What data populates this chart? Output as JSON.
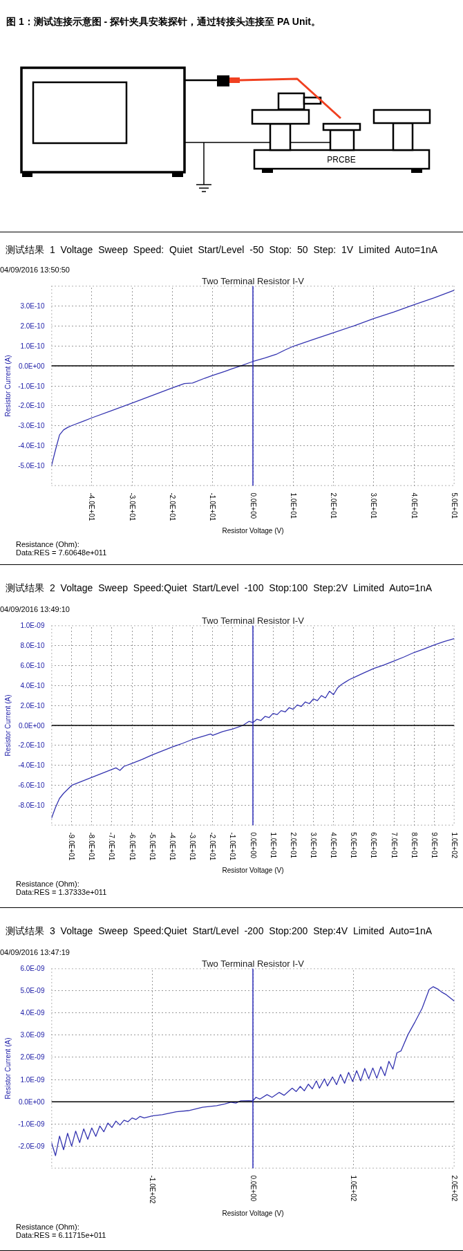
{
  "chart_data": [
    {
      "type": "other",
      "title": "图 1：测试连接示意图 - 探针夹具安装探针，通过转接头连接至 PA Unit。",
      "annotations": [
        "PRCBE"
      ]
    },
    {
      "type": "line",
      "title": "测试结果 1 Voltage Sweep Speed: Quiet Start/Level -50 Stop: 50 Step: 1V Limited Auto=1nA",
      "subtitle": "Two Terminal Resistor I-V",
      "xlabel": "Resistor Voltage (V)",
      "ylabel": "Resistor Current (A)",
      "x": [
        -50,
        -49,
        -48,
        -47,
        -46,
        -45,
        -42,
        -40,
        -35,
        -30,
        -25,
        -20,
        -17,
        -15,
        -12,
        -10,
        -7,
        -5,
        -3,
        -1,
        0,
        3,
        6,
        8,
        10,
        15,
        20,
        25,
        30,
        35,
        40,
        45,
        50
      ],
      "series": [
        {
          "color": "#3434b0",
          "values": [
            -5e-10,
            -4.2e-10,
            -3.45e-10,
            -3.2e-10,
            -3.08e-10,
            -2.99e-10,
            -2.76e-10,
            -2.6e-10,
            -2.23e-10,
            -1.86e-10,
            -1.48e-10,
            -1.1e-10,
            -8.8e-11,
            -8.6e-11,
            -6.2e-11,
            -4.8e-11,
            -2.8e-11,
            -1.3e-11,
            0,
            1.5e-11,
            2.2e-11,
            4e-11,
            6e-11,
            8e-11,
            9.8e-11,
            1.32e-10,
            1.66e-10,
            2e-10,
            2.37e-10,
            2.7e-10,
            3.06e-10,
            3.41e-10,
            3.79e-10
          ]
        }
      ],
      "xlim": [
        -50,
        50
      ],
      "ylim": [
        -6e-10,
        4e-10
      ],
      "xticks": [
        {
          "value": -50,
          "label": null
        },
        {
          "value": -40,
          "label": "-4.0E+01"
        },
        {
          "value": -30,
          "label": "-3.0E+01"
        },
        {
          "value": -20,
          "label": "-2.0E+01"
        },
        {
          "value": -10,
          "label": "-1.0E+01"
        },
        {
          "value": 0,
          "label": "0.0E+00"
        },
        {
          "value": 10,
          "label": "1.0E+01"
        },
        {
          "value": 20,
          "label": "2.0E+01"
        },
        {
          "value": 30,
          "label": "3.0E+01"
        },
        {
          "value": 40,
          "label": "4.0E+01"
        },
        {
          "value": 50,
          "label": "5.0E+01"
        }
      ],
      "yticks": [
        {
          "value": -6e-10,
          "label": null
        },
        {
          "value": -5e-10,
          "label": "-5.0E-10"
        },
        {
          "value": -4e-10,
          "label": "-4.0E-10"
        },
        {
          "value": -3e-10,
          "label": "-3.0E-10"
        },
        {
          "value": -2e-10,
          "label": "-2.0E-10"
        },
        {
          "value": -1e-10,
          "label": "-1.0E-10"
        },
        {
          "value": 0,
          "label": "0.0E+00"
        },
        {
          "value": 1e-10,
          "label": "1.0E-10"
        },
        {
          "value": 2e-10,
          "label": "2.0E-10"
        },
        {
          "value": 3e-10,
          "label": "3.0E-10"
        },
        {
          "value": 4e-10,
          "label": null
        }
      ],
      "grid": true,
      "ref_lines": [
        {
          "axis": "y",
          "value": 0,
          "color": "#000000"
        },
        {
          "axis": "x",
          "value": 0,
          "color": "#2a2ab8"
        }
      ],
      "annotations": [
        "04/09/2016 13:50:50",
        "Resistance (Ohm):",
        "Data:RES = 7.60648e+011"
      ]
    },
    {
      "type": "line",
      "title": "测试结果 2 Voltage Sweep Speed:Quiet Start/Level -100 Stop:100 Step:2V Limited Auto=1nA",
      "subtitle": "Two Terminal Resistor I-V",
      "xlabel": "Resistor Voltage (V)",
      "ylabel": "Resistor Current (A)",
      "x": [
        -100,
        -98,
        -96,
        -94,
        -92,
        -90,
        -85,
        -80,
        -75,
        -70,
        -68,
        -66,
        -64,
        -60,
        -55,
        -50,
        -45,
        -40,
        -35,
        -30,
        -25,
        -21,
        -20,
        -15,
        -10,
        -5,
        -2,
        0,
        2,
        4,
        6,
        8,
        10,
        12,
        14,
        16,
        18,
        20,
        22,
        24,
        26,
        28,
        30,
        32,
        34,
        36,
        38,
        40,
        42,
        44,
        46,
        48,
        50,
        55,
        60,
        65,
        70,
        75,
        80,
        85,
        90,
        95,
        100
      ],
      "series": [
        {
          "color": "#3434b0",
          "values": [
            -9.3e-10,
            -8.2e-10,
            -7.3e-10,
            -6.8e-10,
            -6.4e-10,
            -6e-10,
            -5.6e-10,
            -5.2e-10,
            -4.8e-10,
            -4.4e-10,
            -4.25e-10,
            -4.5e-10,
            -4.1e-10,
            -3.8e-10,
            -3.4e-10,
            -2.95e-10,
            -2.55e-10,
            -2.15e-10,
            -1.8e-10,
            -1.4e-10,
            -1.1e-10,
            -8.5e-11,
            -1e-10,
            -6.2e-11,
            -3.5e-11,
            0,
            4e-11,
            2.8e-11,
            6.2e-11,
            5e-11,
            9e-11,
            7.8e-11,
            1.2e-10,
            1.08e-10,
            1.48e-10,
            1.35e-10,
            1.78e-10,
            1.62e-10,
            2.05e-10,
            1.9e-10,
            2.35e-10,
            2.18e-10,
            2.65e-10,
            2.48e-10,
            2.98e-10,
            2.75e-10,
            3.42e-10,
            3.08e-10,
            3.75e-10,
            4.1e-10,
            4.35e-10,
            4.6e-10,
            4.78e-10,
            5.25e-10,
            5.7e-10,
            6.05e-10,
            6.45e-10,
            6.85e-10,
            7.3e-10,
            7.65e-10,
            8.05e-10,
            8.4e-10,
            8.7e-10
          ]
        }
      ],
      "xlim": [
        -100,
        100
      ],
      "ylim": [
        -1e-09,
        1e-09
      ],
      "xticks": [
        {
          "value": -100,
          "label": null
        },
        {
          "value": -90,
          "label": "-9.0E+01"
        },
        {
          "value": -80,
          "label": "-8.0E+01"
        },
        {
          "value": -70,
          "label": "-7.0E+01"
        },
        {
          "value": -60,
          "label": "-6.0E+01"
        },
        {
          "value": -50,
          "label": "-5.0E+01"
        },
        {
          "value": -40,
          "label": "-4.0E+01"
        },
        {
          "value": -30,
          "label": "-3.0E+01"
        },
        {
          "value": -20,
          "label": "-2.0E+01"
        },
        {
          "value": -10,
          "label": "-1.0E+01"
        },
        {
          "value": 0,
          "label": "0.0E+00"
        },
        {
          "value": 10,
          "label": "1.0E+01"
        },
        {
          "value": 20,
          "label": "2.0E+01"
        },
        {
          "value": 30,
          "label": "3.0E+01"
        },
        {
          "value": 40,
          "label": "4.0E+01"
        },
        {
          "value": 50,
          "label": "5.0E+01"
        },
        {
          "value": 60,
          "label": "6.0E+01"
        },
        {
          "value": 70,
          "label": "7.0E+01"
        },
        {
          "value": 80,
          "label": "8.0E+01"
        },
        {
          "value": 90,
          "label": "9.0E+01"
        },
        {
          "value": 100,
          "label": "1.0E+02"
        }
      ],
      "yticks": [
        {
          "value": -1e-09,
          "label": null
        },
        {
          "value": -8e-10,
          "label": "-8.0E-10"
        },
        {
          "value": -6e-10,
          "label": "-6.0E-10"
        },
        {
          "value": -4e-10,
          "label": "-4.0E-10"
        },
        {
          "value": -2e-10,
          "label": "-2.0E-10"
        },
        {
          "value": 0,
          "label": "0.0E+00"
        },
        {
          "value": 2e-10,
          "label": "2.0E-10"
        },
        {
          "value": 4e-10,
          "label": "4.0E-10"
        },
        {
          "value": 6e-10,
          "label": "6.0E-10"
        },
        {
          "value": 8e-10,
          "label": "8.0E-10"
        },
        {
          "value": 1e-09,
          "label": "1.0E-09"
        }
      ],
      "grid": true,
      "ref_lines": [
        {
          "axis": "y",
          "value": 0,
          "color": "#000000"
        },
        {
          "axis": "x",
          "value": 0,
          "color": "#2a2ab8"
        }
      ],
      "annotations": [
        "04/09/2016 13:49:10",
        "Resistance (Ohm):",
        "Data:RES = 1.37333e+011"
      ]
    },
    {
      "type": "line",
      "title": "测试结果 3 Voltage Sweep Speed:Quiet Start/Level -200 Stop:200 Step:4V Limited Auto=1nA",
      "subtitle": "Two Terminal Resistor I-V",
      "xlabel": "Resistor Voltage (V)",
      "ylabel": "Resistor Current (A)",
      "x": [
        -200,
        -196,
        -192,
        -188,
        -184,
        -180,
        -176,
        -172,
        -168,
        -164,
        -160,
        -156,
        -152,
        -148,
        -144,
        -140,
        -136,
        -132,
        -128,
        -124,
        -120,
        -116,
        -112,
        -108,
        -100,
        -90,
        -76,
        -64,
        -50,
        -36,
        -28,
        -22,
        -17,
        -12,
        -4,
        0,
        3,
        7,
        14,
        19,
        26,
        31,
        39,
        43,
        47,
        51,
        55,
        59,
        63,
        66,
        71,
        74,
        79,
        83,
        87,
        91,
        95,
        99,
        103,
        107,
        111,
        115,
        119,
        123,
        127,
        131,
        135,
        139,
        143,
        147,
        154,
        161,
        168,
        175,
        179,
        184,
        188,
        192,
        200
      ],
      "series": [
        {
          "color": "#3434b0",
          "values": [
            -1.84e-09,
            -2.43e-09,
            -1.55e-09,
            -2.16e-09,
            -1.42e-09,
            -2e-09,
            -1.32e-09,
            -1.84e-09,
            -1.22e-09,
            -1.69e-09,
            -1.18e-09,
            -1.56e-09,
            -1.09e-09,
            -1.35e-09,
            -9.6e-10,
            -1.16e-09,
            -8.7e-10,
            -1.05e-09,
            -8.3e-10,
            -9e-10,
            -7.3e-10,
            -8e-10,
            -6.6e-10,
            -7.3e-10,
            -6.4e-10,
            -5.8e-10,
            -4.5e-10,
            -4e-10,
            -2.5e-10,
            -1.8e-10,
            -1e-10,
            -2e-11,
            -6e-11,
            4e-11,
            5e-11,
            4e-11,
            2e-10,
            1.2e-10,
            3.2e-10,
            2e-10,
            4.2e-10,
            2.9e-10,
            6.1e-10,
            4.6e-10,
            6.9e-10,
            4.9e-10,
            7.9e-10,
            5.8e-10,
            9.4e-10,
            6.1e-10,
            1.03e-09,
            7.1e-10,
            1.12e-09,
            7.7e-10,
            1.23e-09,
            8.3e-10,
            1.32e-09,
            9.1e-10,
            1.4e-09,
            9.4e-10,
            1.5e-09,
            1.03e-09,
            1.52e-09,
            1.06e-09,
            1.58e-09,
            1.17e-09,
            1.82e-09,
            1.47e-09,
            2.2e-09,
            2.29e-09,
            3.03e-09,
            3.6e-09,
            4.21e-09,
            5.06e-09,
            5.18e-09,
            5.06e-09,
            4.92e-09,
            4.82e-09,
            4.53e-09
          ]
        }
      ],
      "xlim": [
        -200,
        200
      ],
      "ylim": [
        -3e-09,
        6e-09
      ],
      "xticks": [
        {
          "value": -200,
          "label": null
        },
        {
          "value": -100,
          "label": "-1.0E+02"
        },
        {
          "value": 0,
          "label": "0.0E+00"
        },
        {
          "value": 100,
          "label": "1.0E+02"
        },
        {
          "value": 200,
          "label": "2.0E+02"
        }
      ],
      "yticks": [
        {
          "value": -3e-09,
          "label": null
        },
        {
          "value": -2e-09,
          "label": "-2.0E-09"
        },
        {
          "value": -1e-09,
          "label": "-1.0E-09"
        },
        {
          "value": 0,
          "label": "0.0E+00"
        },
        {
          "value": 1e-09,
          "label": "1.0E-09"
        },
        {
          "value": 2e-09,
          "label": "2.0E-09"
        },
        {
          "value": 3e-09,
          "label": "3.0E-09"
        },
        {
          "value": 4e-09,
          "label": "4.0E-09"
        },
        {
          "value": 5e-09,
          "label": "5.0E-09"
        },
        {
          "value": 6e-09,
          "label": "6.0E-09"
        }
      ],
      "grid": true,
      "ref_lines": [
        {
          "axis": "y",
          "value": 0,
          "color": "#000000"
        },
        {
          "axis": "x",
          "value": 0,
          "color": "#2a2ab8"
        }
      ],
      "annotations": [
        "04/09/2016 13:47:19",
        "Resistance (Ohm):",
        "Data:RES = 6.11715e+011"
      ]
    }
  ]
}
